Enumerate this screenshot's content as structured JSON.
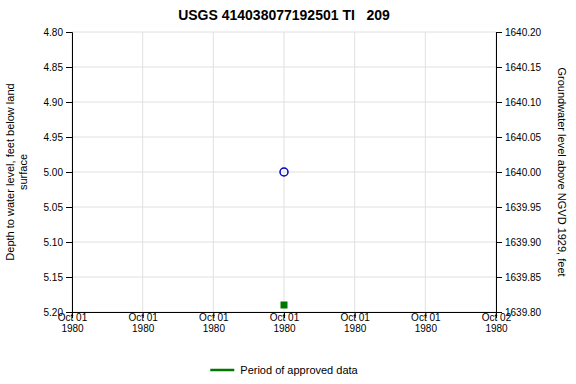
{
  "chart_data": {
    "type": "scatter",
    "title": "USGS 414038077192501 TI   209",
    "y_label": "Depth to water level, feet below land\nsurface",
    "y2_label": "Groundwater level above NGVD 1929, feet",
    "categories": [
      "Oct 01\n1980",
      "Oct 01\n1980",
      "Oct 01\n1980",
      "Oct 01\n1980",
      "Oct 01\n1980",
      "Oct 01\n1980",
      "Oct 02\n1980"
    ],
    "series": [
      {
        "color": "#0000cc",
        "marker": "open-circle",
        "values": [
          null,
          null,
          null,
          5.0,
          null,
          null,
          null
        ]
      },
      {
        "name": "Period of approved data",
        "color": "#007700",
        "marker": "square",
        "values": [
          null,
          null,
          null,
          5.19,
          null,
          null,
          null
        ]
      }
    ],
    "ylim": [
      5.2,
      4.8
    ],
    "yticks": [
      {
        "value": 4.8,
        "label": "4.80"
      },
      {
        "value": 4.85,
        "label": "4.85"
      },
      {
        "value": 4.9,
        "label": "4.90"
      },
      {
        "value": 4.95,
        "label": "4.95"
      },
      {
        "value": 5.0,
        "label": "5.00"
      },
      {
        "value": 5.05,
        "label": "5.05"
      },
      {
        "value": 5.1,
        "label": "5.10"
      },
      {
        "value": 5.15,
        "label": "5.15"
      },
      {
        "value": 5.2,
        "label": "5.20"
      }
    ],
    "y2lim": [
      1639.8,
      1640.2
    ],
    "y2ticks": [
      {
        "value": 1639.8,
        "label": "1639.80"
      },
      {
        "value": 1639.85,
        "label": "1639.85"
      },
      {
        "value": 1639.9,
        "label": "1639.90"
      },
      {
        "value": 1639.95,
        "label": "1639.95"
      },
      {
        "value": 1640.0,
        "label": "1640.00"
      },
      {
        "value": 1640.05,
        "label": "1640.05"
      },
      {
        "value": 1640.1,
        "label": "1640.10"
      },
      {
        "value": 1640.15,
        "label": "1640.15"
      },
      {
        "value": 1640.2,
        "label": "1640.20"
      }
    ],
    "grid": true,
    "legend": "bottom"
  }
}
